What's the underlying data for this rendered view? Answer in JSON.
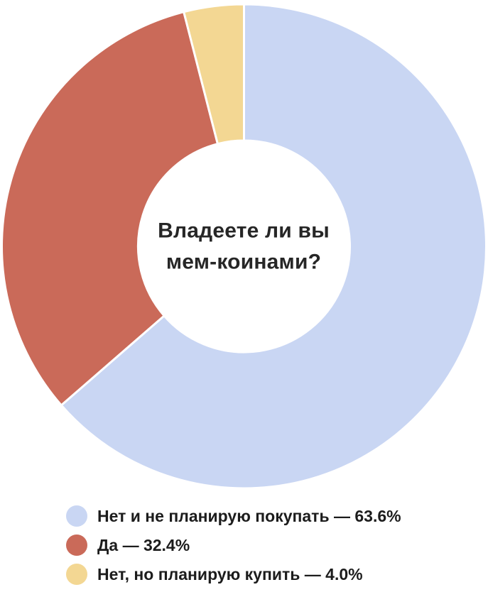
{
  "page": {
    "background": "#ffffff"
  },
  "chart_data": {
    "type": "pie",
    "variant": "donut",
    "title_lines": [
      "Владеете ли вы",
      "мем-коинами?"
    ],
    "direction": "clockwise",
    "start_angle_deg": 0,
    "inner_radius_ratio": 0.437,
    "separator_color": "#ffffff",
    "legend_position": "bottom-left",
    "segments": [
      {
        "label": "Нет и не планирую покупать",
        "value": 63.6,
        "color": "#c9d6f3",
        "legend_label": "Нет и не планирую покупать — 63.6%"
      },
      {
        "label": "Да",
        "value": 32.4,
        "color": "#ca6a59",
        "legend_label": "Да — 32.4%"
      },
      {
        "label": "Нет, но планирую купить",
        "value": 4.0,
        "color": "#f3d793",
        "legend_label": "Нет, но планирую купить — 4.0%"
      }
    ]
  }
}
